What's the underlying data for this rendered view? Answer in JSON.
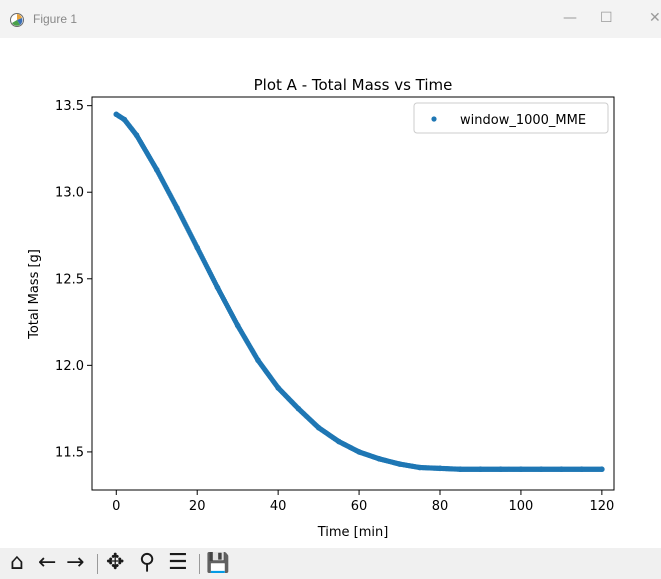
{
  "window": {
    "title": "Figure 1",
    "minimize_glyph": "—",
    "maximize_glyph": "☐",
    "close_glyph": "✕"
  },
  "toolbar": {
    "home_icon": "⌂",
    "back_icon": "←",
    "forward_icon": "→",
    "pan_icon": "✥",
    "zoom_icon": "⚲",
    "configure_icon": "☰",
    "save_icon": "💾"
  },
  "colors": {
    "series": "#1f77b4",
    "axes": "#000000",
    "toolbar_bg": "#f0f0f0",
    "titlebar_bg": "#f3f3f3"
  },
  "chart_data": {
    "type": "scatter",
    "title": "Plot A - Total Mass vs Time",
    "xlabel": "Time [min]",
    "ylabel": "Total Mass [g]",
    "xlim": [
      -6,
      123
    ],
    "ylim": [
      11.28,
      13.55
    ],
    "xticks": [
      0,
      20,
      40,
      60,
      80,
      100,
      120
    ],
    "xtick_labels": [
      "0",
      "20",
      "40",
      "60",
      "80",
      "100",
      "120"
    ],
    "yticks": [
      11.5,
      12.0,
      12.5,
      13.0,
      13.5
    ],
    "ytick_labels": [
      "11.5",
      "12.0",
      "12.5",
      "13.0",
      "13.5"
    ],
    "grid": false,
    "legend_position": "upper right",
    "series": [
      {
        "name": "window_1000_MME",
        "color": "#1f77b4",
        "x": [
          0,
          2,
          5,
          10,
          15,
          20,
          25,
          30,
          35,
          40,
          45,
          50,
          55,
          60,
          65,
          70,
          75,
          80,
          85,
          90,
          95,
          100,
          105,
          110,
          115,
          120
        ],
        "y": [
          13.45,
          13.42,
          13.33,
          13.13,
          12.91,
          12.68,
          12.45,
          12.23,
          12.03,
          11.87,
          11.75,
          11.64,
          11.56,
          11.5,
          11.46,
          11.43,
          11.41,
          11.405,
          11.4,
          11.4,
          11.4,
          11.4,
          11.4,
          11.4,
          11.4,
          11.4
        ]
      }
    ]
  }
}
